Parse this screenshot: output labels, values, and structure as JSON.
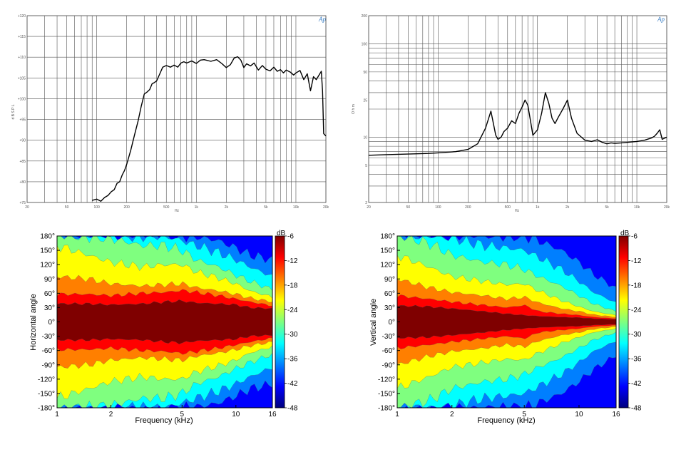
{
  "colors": {
    "grid": "#555555",
    "curve": "#000000",
    "logo": "#3b7fc4",
    "contour_levels": [
      "#00007f",
      "#0000ff",
      "#007fff",
      "#00ffff",
      "#7fff7f",
      "#ffff00",
      "#ff7f00",
      "#ff0000",
      "#7f0000"
    ]
  },
  "chart_data": [
    {
      "id": "frequency_response",
      "type": "line",
      "title": "",
      "xlabel": "Hz",
      "ylabel": "d B S P L",
      "xscale": "log",
      "xlim": [
        20,
        20000
      ],
      "ylim": [
        75,
        120
      ],
      "x_tick_labels": [
        "20",
        "50",
        "100",
        "200",
        "500",
        "1k",
        "2k",
        "5k",
        "10k",
        "20k"
      ],
      "x_tick_values": [
        20,
        50,
        100,
        200,
        500,
        1000,
        2000,
        5000,
        10000,
        20000
      ],
      "y_tick_labels": [
        "+120",
        "+115",
        "+110",
        "+105",
        "+100",
        "+95",
        "+90",
        "+85",
        "+80",
        "+75"
      ],
      "y_tick_values": [
        120,
        115,
        110,
        105,
        100,
        95,
        90,
        85,
        80,
        75
      ],
      "logo": "Ap",
      "series": [
        {
          "name": "Frequency response",
          "x": [
            90,
            100,
            110,
            120,
            130,
            140,
            150,
            160,
            170,
            180,
            190,
            200,
            220,
            240,
            260,
            280,
            300,
            320,
            340,
            360,
            380,
            400,
            430,
            460,
            500,
            550,
            600,
            650,
            700,
            750,
            800,
            900,
            1000,
            1100,
            1200,
            1400,
            1600,
            1800,
            2000,
            2200,
            2400,
            2600,
            2800,
            3000,
            3200,
            3500,
            3800,
            4200,
            4600,
            5000,
            5500,
            6000,
            6500,
            7000,
            7500,
            8000,
            8800,
            9500,
            10000,
            11000,
            12000,
            13000,
            14000,
            15000,
            16000,
            17000,
            18000,
            18500,
            19000,
            20000
          ],
          "y": [
            75.5,
            75.8,
            75.3,
            76.2,
            76.7,
            77.6,
            78.1,
            79.6,
            80.0,
            81.6,
            82.7,
            84.2,
            87.6,
            91.3,
            94.6,
            98.2,
            101.1,
            101.6,
            102.2,
            103.6,
            103.9,
            104.3,
            106.0,
            107.6,
            108.0,
            107.6,
            108.1,
            107.6,
            108.6,
            108.9,
            108.6,
            109.1,
            108.5,
            109.3,
            109.4,
            109.0,
            109.4,
            108.5,
            107.5,
            108.2,
            109.8,
            110.1,
            109.3,
            107.5,
            108.4,
            107.9,
            108.6,
            106.9,
            108.0,
            107.1,
            106.7,
            107.6,
            106.6,
            107.0,
            106.2,
            106.9,
            106.4,
            105.7,
            106.2,
            106.8,
            104.6,
            106.0,
            101.9,
            105.3,
            104.6,
            105.6,
            106.6,
            101.9,
            91.6,
            91.0
          ]
        }
      ]
    },
    {
      "id": "impedance",
      "type": "line",
      "title": "",
      "xlabel": "Hz",
      "ylabel": "O h m",
      "xscale": "log",
      "yscale": "log",
      "xlim": [
        20,
        20000
      ],
      "ylim": [
        2,
        200
      ],
      "x_tick_labels": [
        "20",
        "50",
        "100",
        "200",
        "500",
        "1k",
        "2k",
        "5k",
        "10k",
        "20k"
      ],
      "x_tick_values": [
        20,
        50,
        100,
        200,
        500,
        1000,
        2000,
        5000,
        10000,
        20000
      ],
      "y_tick_labels": [
        "200",
        "100",
        "50",
        "25",
        "10",
        "5",
        "2"
      ],
      "y_tick_values": [
        200,
        100,
        50,
        25,
        10,
        5,
        2
      ],
      "logo": "Ap",
      "series": [
        {
          "name": "Impedance",
          "x": [
            20,
            30,
            50,
            80,
            100,
            150,
            200,
            250,
            300,
            340,
            360,
            380,
            400,
            430,
            460,
            500,
            550,
            600,
            650,
            700,
            750,
            800,
            850,
            900,
            1000,
            1100,
            1200,
            1300,
            1400,
            1500,
            1600,
            1800,
            2000,
            2200,
            2500,
            3000,
            3500,
            4000,
            4500,
            5000,
            5500,
            6000,
            7000,
            8000,
            10000,
            12000,
            14000,
            15000,
            16000,
            17000,
            18000,
            20000
          ],
          "y": [
            6.4,
            6.5,
            6.6,
            6.7,
            6.8,
            7.0,
            7.4,
            8.5,
            12.5,
            19.0,
            14.0,
            10.5,
            9.5,
            10.0,
            11.5,
            12.5,
            15.0,
            14.0,
            18.0,
            21.0,
            25.0,
            22.0,
            15.0,
            10.5,
            12.0,
            18.0,
            30.0,
            23.0,
            16.0,
            14.0,
            16.0,
            20.0,
            25.0,
            16.0,
            11.0,
            9.3,
            9.0,
            9.4,
            8.8,
            8.5,
            8.7,
            8.6,
            8.7,
            8.8,
            9.0,
            9.3,
            9.8,
            10.2,
            11.0,
            12.0,
            9.5,
            10.0
          ]
        }
      ]
    },
    {
      "id": "horizontal_directivity",
      "type": "heatmap",
      "title": "",
      "xlabel": "Frequency (kHz)",
      "ylabel": "Horizontal angle",
      "xscale": "log",
      "xlim": [
        1,
        16
      ],
      "ylim": [
        -180,
        180
      ],
      "x_tick_labels": [
        "1",
        "2",
        "5",
        "10",
        "16"
      ],
      "x_tick_values": [
        1,
        2,
        5,
        10,
        16
      ],
      "y_tick_labels": [
        "180°",
        "150°",
        "120°",
        "90°",
        "60°",
        "30°",
        "0°",
        "-30°",
        "-60°",
        "-90°",
        "-120°",
        "-150°",
        "-180°"
      ],
      "y_tick_values": [
        180,
        150,
        120,
        90,
        60,
        30,
        0,
        -30,
        -60,
        -90,
        -120,
        -150,
        -180
      ],
      "colorbar": {
        "unit": "dB",
        "labels": [
          "-6",
          "-12",
          "-18",
          "-24",
          "-30",
          "-36",
          "-42",
          "-48"
        ],
        "values": [
          -6,
          -12,
          -18,
          -24,
          -30,
          -36,
          -42,
          -48
        ]
      },
      "contour_bounds_deg": {
        "freq_khz": [
          1,
          1.5,
          2,
          3,
          4,
          5,
          6,
          8,
          10,
          12,
          16
        ],
        "above_-6dB": [
          38,
          38,
          36,
          38,
          42,
          44,
          40,
          38,
          36,
          30,
          28
        ],
        "above_-12dB": [
          58,
          58,
          55,
          60,
          62,
          66,
          62,
          55,
          48,
          42,
          34
        ],
        "above_-18dB": [
          95,
          90,
          80,
          75,
          78,
          80,
          72,
          65,
          58,
          50,
          42
        ],
        "above_-24dB": [
          160,
          140,
          125,
          115,
          120,
          120,
          105,
          92,
          80,
          65,
          52
        ],
        "above_-30dB": [
          180,
          180,
          175,
          160,
          160,
          150,
          130,
          115,
          98,
          85,
          68
        ],
        "above_-36dB": [
          180,
          180,
          180,
          180,
          180,
          170,
          160,
          145,
          130,
          115,
          95
        ],
        "above_-42dB": [
          180,
          180,
          180,
          180,
          180,
          180,
          180,
          170,
          155,
          140,
          130
        ]
      }
    },
    {
      "id": "vertical_directivity",
      "type": "heatmap",
      "title": "",
      "xlabel": "Frequency (kHz)",
      "ylabel": "Vertical angle",
      "xscale": "log",
      "xlim": [
        1,
        16
      ],
      "ylim": [
        -180,
        180
      ],
      "x_tick_labels": [
        "1",
        "2",
        "5",
        "10",
        "16"
      ],
      "x_tick_values": [
        1,
        2,
        5,
        10,
        16
      ],
      "y_tick_labels": [
        "180°",
        "150°",
        "120°",
        "90°",
        "60°",
        "30°",
        "0°",
        "-30°",
        "-60°",
        "-90°",
        "-120°",
        "-150°",
        "-180°"
      ],
      "y_tick_values": [
        180,
        150,
        120,
        90,
        60,
        30,
        0,
        -30,
        -60,
        -90,
        -120,
        -150,
        -180
      ],
      "colorbar": {
        "unit": "dB",
        "labels": [
          "-6",
          "-12",
          "-18",
          "-24",
          "-30",
          "-36",
          "-42",
          "-48"
        ],
        "values": [
          -6,
          -12,
          -18,
          -24,
          -30,
          -36,
          -42,
          -48
        ]
      },
      "contour_bounds_deg": {
        "freq_khz": [
          1,
          1.5,
          2,
          3,
          4,
          5,
          6,
          8,
          10,
          12,
          16
        ],
        "above_-6dB": [
          34,
          32,
          28,
          22,
          17,
          14,
          12,
          10,
          9,
          7,
          5
        ],
        "above_-12dB": [
          55,
          48,
          42,
          35,
          30,
          35,
          22,
          17,
          14,
          10,
          7
        ],
        "above_-18dB": [
          90,
          72,
          62,
          55,
          48,
          52,
          40,
          28,
          22,
          15,
          10
        ],
        "above_-24dB": [
          140,
          115,
          95,
          85,
          78,
          80,
          65,
          45,
          32,
          22,
          14
        ],
        "above_-30dB": [
          180,
          165,
          140,
          125,
          120,
          110,
          95,
          75,
          55,
          38,
          22
        ],
        "above_-36dB": [
          180,
          180,
          175,
          160,
          155,
          150,
          135,
          110,
          85,
          62,
          40
        ],
        "above_-42dB": [
          180,
          180,
          180,
          180,
          180,
          180,
          170,
          150,
          125,
          100,
          70
        ]
      }
    }
  ]
}
